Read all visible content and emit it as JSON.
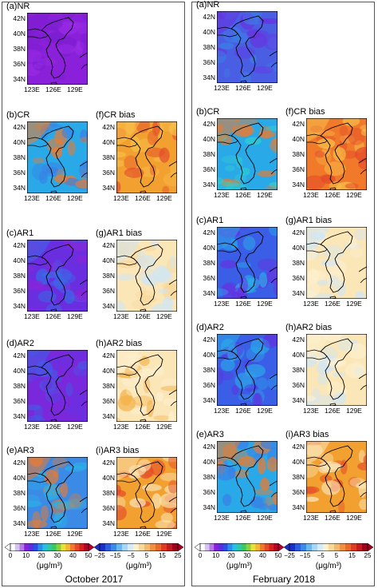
{
  "panels": {
    "oct": [
      {
        "id": "a",
        "title": "(a)NR",
        "kind": "abs",
        "palette": [
          "#8a20d9",
          "#9a2ce6",
          "#7a1ed0"
        ]
      },
      {
        "id": "b",
        "title": "(b)CR",
        "kind": "abs",
        "palette": [
          "#2aa9e8",
          "#3a7fe6",
          "#f07a2a"
        ]
      },
      {
        "id": "f",
        "title": "(f)CR  bias",
        "kind": "bias",
        "palette": [
          "#f2a030",
          "#e44a2a",
          "#f7c04a"
        ]
      },
      {
        "id": "c",
        "title": "(c)AR1",
        "kind": "abs",
        "palette": [
          "#6a2de0",
          "#8a24d8",
          "#3a6ae6"
        ]
      },
      {
        "id": "g",
        "title": "(g)AR1  bias",
        "kind": "bias",
        "palette": [
          "#fbe6b8",
          "#f8d89a",
          "#cfe6f6"
        ]
      },
      {
        "id": "d",
        "title": "(d)AR2",
        "kind": "abs",
        "palette": [
          "#7a28dc",
          "#6a30e0",
          "#3f5ee6"
        ]
      },
      {
        "id": "h",
        "title": "(h)AR2  bias",
        "kind": "bias",
        "palette": [
          "#fbe6b8",
          "#f4b24a",
          "#fdf0cf"
        ]
      },
      {
        "id": "e",
        "title": "(e)AR3",
        "kind": "abs",
        "palette": [
          "#3a8ae6",
          "#2bb0e8",
          "#f07a2a"
        ]
      },
      {
        "id": "i",
        "title": "(i)AR3  bias",
        "kind": "bias",
        "palette": [
          "#f2a030",
          "#e44a2a",
          "#fbe6b8"
        ]
      }
    ],
    "feb": [
      {
        "id": "a",
        "title": "(a)NR",
        "kind": "abs",
        "palette": [
          "#4a5ee4",
          "#3a80e6",
          "#6a30e0"
        ]
      },
      {
        "id": "b",
        "title": "(b)CR",
        "kind": "abs",
        "palette": [
          "#2aa9e8",
          "#2fd0d0",
          "#f07a2a"
        ]
      },
      {
        "id": "f",
        "title": "(f)CR  bias",
        "kind": "bias",
        "palette": [
          "#f07a2a",
          "#e44a2a",
          "#f7c04a"
        ]
      },
      {
        "id": "c",
        "title": "(c)AR1",
        "kind": "abs",
        "palette": [
          "#3a5ee6",
          "#6a2de0",
          "#2aa9e8"
        ]
      },
      {
        "id": "g",
        "title": "(g)AR1  bias",
        "kind": "bias",
        "palette": [
          "#fbe6b8",
          "#fdf0cf",
          "#cfe6f6"
        ]
      },
      {
        "id": "d",
        "title": "(d)AR2",
        "kind": "abs",
        "palette": [
          "#3a5ee6",
          "#5a38e0",
          "#2aa9e8"
        ]
      },
      {
        "id": "h",
        "title": "(h)AR2  bias",
        "kind": "bias",
        "palette": [
          "#fbe6b8",
          "#cfe6f6",
          "#fdf0cf"
        ]
      },
      {
        "id": "e",
        "title": "(e)AR3",
        "kind": "abs",
        "palette": [
          "#2aa9e8",
          "#3a80e6",
          "#f07a2a"
        ]
      },
      {
        "id": "i",
        "title": "(i)AR3  bias",
        "kind": "bias",
        "palette": [
          "#f2a030",
          "#e44a2a",
          "#fbe6b8"
        ]
      }
    ]
  },
  "axes": {
    "lat_labels": [
      "42N",
      "40N",
      "38N",
      "36N",
      "34N"
    ],
    "lon_labels": [
      "123E",
      "126E",
      "129E"
    ]
  },
  "colorbars": {
    "abs": {
      "ticks": [
        "0",
        "10",
        "20",
        "30",
        "40",
        "50"
      ],
      "unit": "(μg/m³)",
      "colors": [
        "#ffffff",
        "#d6c2f0",
        "#b07ae6",
        "#8a20d9",
        "#5a2de0",
        "#2a4ee6",
        "#2a8ee8",
        "#28c0e0",
        "#30c8a0",
        "#3cc860",
        "#8ad03a",
        "#e6e23a",
        "#f2b830",
        "#f07a2a",
        "#e44a2a",
        "#d62020",
        "#b8002a"
      ]
    },
    "bias": {
      "ticks": [
        "−25",
        "−15",
        "−5",
        "5",
        "15",
        "25"
      ],
      "unit": "(μg/m³)",
      "colors": [
        "#1a2ec8",
        "#2a5ee0",
        "#3a8ae8",
        "#6ab6ee",
        "#a8d6f4",
        "#d4ecf8",
        "#fdf0cf",
        "#f8d89a",
        "#f2b870",
        "#f09040",
        "#ea6a2a",
        "#de3a24",
        "#c41a20",
        "#a0001e"
      ]
    }
  },
  "periods": {
    "oct": "October 2017",
    "feb": "February 2018"
  }
}
